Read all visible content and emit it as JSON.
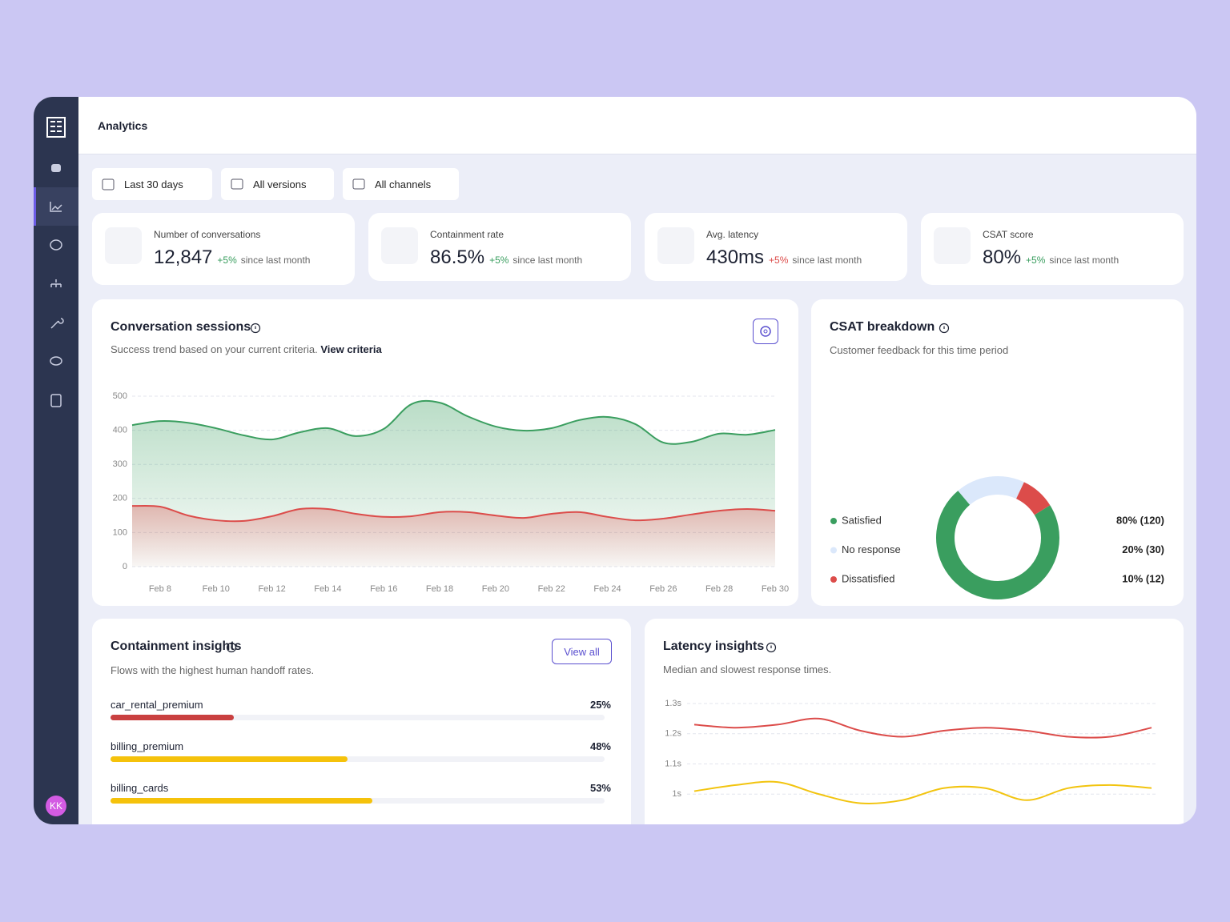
{
  "header": {
    "title": "Analytics"
  },
  "sidebar": {
    "avatar": "KK"
  },
  "filters": [
    "Last 30 days",
    "All versions",
    "All channels"
  ],
  "kpis": [
    {
      "label": "Number of conversations",
      "value": "12,847",
      "change": "+5%",
      "change_color": "#3a9e5f",
      "note": "since last month"
    },
    {
      "label": "Containment rate",
      "value": "86.5%",
      "change": "+5%",
      "change_color": "#3a9e5f",
      "note": "since last month"
    },
    {
      "label": "Avg. latency",
      "value": "430ms",
      "change": "+5%",
      "change_color": "#dc4c4a",
      "note": "since last month"
    },
    {
      "label": "CSAT score",
      "value": "80%",
      "change": "+5%",
      "change_color": "#3a9e5f",
      "note": "since last month"
    }
  ],
  "containment": {
    "title": "Containment insights",
    "subtitle": "Flows with the highest human handoff rates.",
    "button": "View all",
    "rows": [
      {
        "name": "car_rental_premium",
        "value": 25,
        "value_label": "25%",
        "color": "#c94040"
      },
      {
        "name": "billing_premium",
        "value": 48,
        "value_label": "48%",
        "color": "#f5c20b"
      },
      {
        "name": "billing_cards",
        "value": 53,
        "value_label": "53%",
        "color": "#f5c20b"
      }
    ]
  },
  "chart_data": [
    {
      "type": "area",
      "title": "Conversation sessions",
      "subtitle": "Success trend based on your current criteria.",
      "link": "View criteria",
      "categories": [
        null,
        "Feb 8",
        null,
        "Feb 10",
        null,
        "Feb 12",
        null,
        "Feb 14",
        null,
        "Feb 16",
        null,
        "Feb 18",
        null,
        "Feb 20",
        null,
        "Feb 22",
        null,
        "Feb 24",
        null,
        "Feb 26",
        null,
        "Feb 28",
        null,
        "Feb 30"
      ],
      "series": [
        {
          "color": "#3a9e5f",
          "values": [
            415,
            427,
            422,
            406,
            385,
            373,
            394,
            406,
            383,
            404,
            477,
            481,
            441,
            411,
            399,
            406,
            430,
            439,
            418,
            364,
            366,
            390,
            387,
            401
          ]
        },
        {
          "color": "#dc4c4a",
          "values": [
            178,
            176,
            150,
            136,
            134,
            148,
            169,
            169,
            155,
            146,
            148,
            160,
            160,
            150,
            143,
            155,
            160,
            146,
            136,
            141,
            153,
            164,
            169,
            164
          ]
        }
      ],
      "ylim": [
        0,
        500
      ],
      "yticks": [
        0,
        100,
        200,
        300,
        400,
        500
      ],
      "grid": true
    },
    {
      "type": "pie",
      "title": "CSAT breakdown",
      "subtitle": "Customer feedback for this time period",
      "categories": [
        "Satisfied",
        "No response",
        "Dissatisfied"
      ],
      "values": [
        80,
        20,
        10
      ],
      "value_labels": [
        "80% (120)",
        "20% (30)",
        "10% (12)"
      ],
      "colors": [
        "#3a9e5f",
        "#dbe8fb",
        "#dc4c4a"
      ]
    },
    {
      "type": "line",
      "title": "Latency insights",
      "subtitle": "Median and slowest response times.",
      "series": [
        {
          "color": "#dc4c4a",
          "values": [
            1.23,
            1.22,
            1.23,
            1.25,
            1.21,
            1.19,
            1.21,
            1.22,
            1.21,
            1.19,
            1.19,
            1.22
          ]
        },
        {
          "color": "#f2c40f",
          "values": [
            1.01,
            1.03,
            1.04,
            1.0,
            0.97,
            0.98,
            1.02,
            1.02,
            0.98,
            1.02,
            1.03,
            1.02
          ]
        }
      ],
      "ylim": [
        0.9,
        1.3
      ],
      "yticks": [
        {
          "value": 1.3,
          "label": "1.3s"
        },
        {
          "value": 1.2,
          "label": "1.2s"
        },
        {
          "value": 1.1,
          "label": "1.1s"
        },
        {
          "value": 1,
          "label": "1s"
        }
      ],
      "grid": true
    }
  ]
}
